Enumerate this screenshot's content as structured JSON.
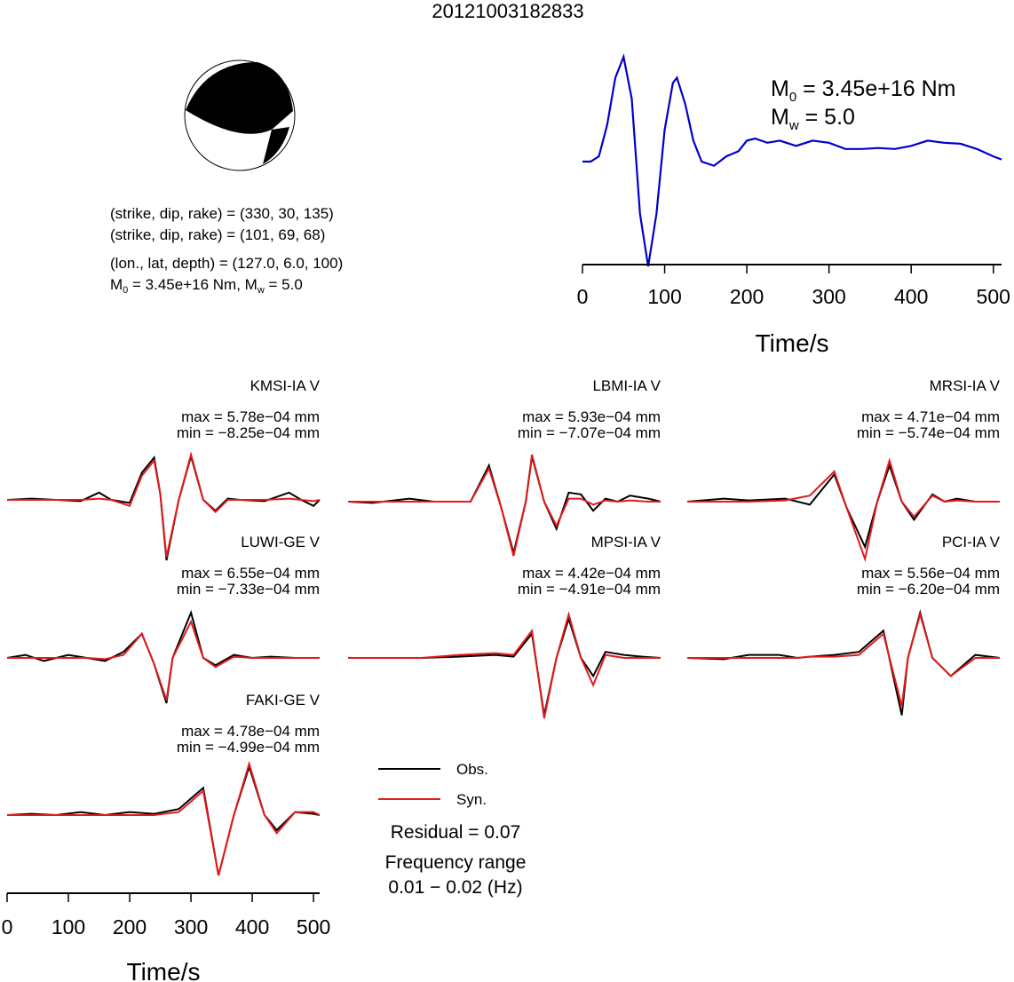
{
  "title": "20121003182833",
  "source_info": {
    "np1": "(strike, dip, rake) = (330, 30, 135)",
    "np2": "(strike, dip, rake) = (101, 69, 68)",
    "location": "(lon., lat, depth) = (127.0, 6.0, 100)",
    "moment_prefix": "M",
    "moment_sub": "0",
    "moment_value": " = 3.45e+16 Nm, M",
    "mw_sub": "w",
    "mw_value": " = 5.0"
  },
  "stf_panel": {
    "m0_prefix": "M",
    "m0_sub": "0",
    "m0_value": " = 3.45e+16 Nm",
    "mw_prefix": "M",
    "mw_sub": "w",
    "mw_value": " = 5.0",
    "xlabel": "Time/s",
    "xticks": [
      "0",
      "100",
      "200",
      "300",
      "400",
      "500"
    ]
  },
  "waveform_panel": {
    "xlabel": "Time/s",
    "xticks": [
      "0",
      "100",
      "200",
      "300",
      "400",
      "500"
    ]
  },
  "legend": {
    "obs": "Obs.",
    "syn": "Syn.",
    "obs_color": "#000000",
    "syn_color": "#e31a1c"
  },
  "residual": "Residual = 0.07",
  "frequency_label": "Frequency range",
  "frequency_value": "0.01 − 0.02 (Hz)",
  "colors": {
    "stf": "#0000cc",
    "obs": "#000000",
    "syn": "#e31a1c"
  },
  "chart_data": [
    {
      "type": "line",
      "name": "source-time-function",
      "x_range": [
        0,
        510
      ],
      "ylim": [
        -1.0,
        1.0
      ],
      "series": [
        {
          "x": [
            0,
            10,
            20,
            30,
            40,
            50,
            60,
            70,
            80,
            90,
            100,
            110,
            115,
            125,
            135,
            145,
            160,
            175,
            190,
            200,
            210,
            225,
            240,
            260,
            280,
            300,
            320,
            340,
            360,
            380,
            400,
            420,
            440,
            460,
            480,
            500,
            510
          ],
          "values": [
            0.0,
            0.0,
            0.05,
            0.35,
            0.8,
            1.0,
            0.6,
            -0.5,
            -1.0,
            -0.5,
            0.3,
            0.75,
            0.8,
            0.55,
            0.2,
            0.0,
            -0.04,
            0.05,
            0.1,
            0.2,
            0.22,
            0.18,
            0.2,
            0.15,
            0.2,
            0.18,
            0.12,
            0.12,
            0.13,
            0.12,
            0.15,
            0.2,
            0.18,
            0.17,
            0.12,
            0.05,
            0.02
          ]
        }
      ]
    },
    {
      "type": "line",
      "station": "KMSI-IA V",
      "max": "max = 5.78e−04 mm",
      "min": "min = −8.25e−04 mm",
      "x_range": [
        0,
        510
      ],
      "ylim": [
        -1.0,
        1.0
      ],
      "series": [
        {
          "name": "Obs.",
          "x": [
            0,
            40,
            80,
            120,
            150,
            170,
            200,
            220,
            240,
            250,
            260,
            280,
            300,
            320,
            340,
            360,
            380,
            420,
            460,
            480,
            500,
            510
          ],
          "values": [
            0,
            0.02,
            0,
            -0.02,
            0.12,
            0.0,
            -0.05,
            0.45,
            0.7,
            0.1,
            -1.0,
            0.0,
            0.72,
            0.0,
            -0.18,
            0.02,
            0,
            -0.02,
            0.12,
            0.0,
            -0.1,
            0
          ]
        },
        {
          "name": "Syn.",
          "x": [
            0,
            40,
            80,
            120,
            150,
            170,
            200,
            220,
            240,
            250,
            260,
            280,
            300,
            320,
            340,
            360,
            380,
            420,
            460,
            480,
            500,
            510
          ],
          "values": [
            0,
            0,
            0,
            0,
            0.02,
            0.0,
            -0.1,
            0.4,
            0.65,
            0.1,
            -0.95,
            0.0,
            0.75,
            0.0,
            -0.2,
            0.0,
            0,
            0,
            0.02,
            0.0,
            -0.02,
            0
          ]
        }
      ]
    },
    {
      "type": "line",
      "station": "LBMI-IA V",
      "max": "max = 5.93e−04 mm",
      "min": "min = −7.07e−04 mm",
      "x_range": [
        0,
        510
      ],
      "ylim": [
        -1.0,
        1.0
      ],
      "series": [
        {
          "name": "Obs.",
          "x": [
            0,
            40,
            100,
            140,
            200,
            230,
            250,
            270,
            290,
            300,
            320,
            340,
            360,
            380,
            400,
            420,
            440,
            460,
            490,
            510
          ],
          "values": [
            0,
            -0.02,
            0.05,
            0.0,
            0.0,
            0.6,
            -0.1,
            -0.85,
            0.0,
            0.75,
            0.0,
            -0.45,
            0.15,
            0.12,
            -0.15,
            0.05,
            0.0,
            0.1,
            0.05,
            0
          ]
        },
        {
          "name": "Syn.",
          "x": [
            0,
            40,
            100,
            140,
            200,
            230,
            250,
            270,
            290,
            300,
            320,
            340,
            360,
            380,
            400,
            420,
            440,
            460,
            490,
            510
          ],
          "values": [
            0,
            0,
            0,
            0.0,
            0.0,
            0.55,
            -0.1,
            -0.9,
            0.0,
            0.78,
            0.0,
            -0.4,
            0.05,
            0.05,
            -0.05,
            0.02,
            0.0,
            0.02,
            0.0,
            0
          ]
        }
      ]
    },
    {
      "type": "line",
      "station": "MRSI-IA V",
      "max": "max = 4.71e−04 mm",
      "min": "min = −5.74e−04 mm",
      "x_range": [
        0,
        510
      ],
      "ylim": [
        -1.0,
        1.0
      ],
      "series": [
        {
          "name": "Obs.",
          "x": [
            0,
            60,
            100,
            160,
            200,
            240,
            260,
            290,
            310,
            330,
            350,
            370,
            400,
            420,
            440,
            470,
            510
          ],
          "values": [
            0,
            0.05,
            0.02,
            0.05,
            -0.05,
            0.45,
            -0.1,
            -0.75,
            0.0,
            0.6,
            0.0,
            -0.3,
            0.12,
            0.0,
            0.05,
            0.0,
            0
          ]
        },
        {
          "name": "Syn.",
          "x": [
            0,
            60,
            100,
            160,
            200,
            240,
            260,
            290,
            310,
            330,
            350,
            370,
            400,
            420,
            440,
            470,
            510
          ],
          "values": [
            0,
            0,
            0,
            0.02,
            0.1,
            0.5,
            -0.1,
            -0.95,
            0.0,
            0.68,
            0.0,
            -0.25,
            0.1,
            0.0,
            0.02,
            0.0,
            0
          ]
        }
      ]
    },
    {
      "type": "line",
      "station": "LUWI-GE V",
      "max": "max = 6.55e−04 mm",
      "min": "min = −7.33e−04 mm",
      "x_range": [
        0,
        510
      ],
      "ylim": [
        -1.0,
        1.0
      ],
      "series": [
        {
          "name": "Obs.",
          "x": [
            0,
            30,
            60,
            100,
            130,
            160,
            190,
            220,
            240,
            260,
            270,
            300,
            320,
            340,
            370,
            400,
            430,
            470,
            510
          ],
          "values": [
            0,
            0.05,
            -0.05,
            0.05,
            0.0,
            -0.05,
            0.1,
            0.4,
            -0.1,
            -0.75,
            0.0,
            0.75,
            0.0,
            -0.12,
            0.05,
            0.0,
            0.02,
            0.0,
            0
          ]
        },
        {
          "name": "Syn.",
          "x": [
            0,
            30,
            60,
            100,
            130,
            160,
            190,
            220,
            240,
            260,
            270,
            300,
            320,
            340,
            370,
            400,
            430,
            470,
            510
          ],
          "values": [
            0,
            0,
            0,
            0,
            0.0,
            -0.02,
            0.05,
            0.4,
            -0.1,
            -0.7,
            0.0,
            0.6,
            0.0,
            -0.15,
            0.02,
            0.0,
            0.0,
            0.0,
            0
          ]
        }
      ]
    },
    {
      "type": "line",
      "station": "MPSI-IA V",
      "max": "max = 4.42e−04 mm",
      "min": "min = −4.91e−04 mm",
      "x_range": [
        0,
        510
      ],
      "ylim": [
        -1.0,
        1.0
      ],
      "series": [
        {
          "name": "Obs.",
          "x": [
            0,
            60,
            120,
            180,
            240,
            270,
            300,
            320,
            340,
            360,
            380,
            400,
            420,
            450,
            480,
            510
          ],
          "values": [
            0,
            0.0,
            0.0,
            0.02,
            0.05,
            0.02,
            0.4,
            -0.95,
            0.0,
            0.65,
            0.0,
            -0.3,
            0.1,
            0.05,
            0.02,
            0
          ]
        },
        {
          "name": "Syn.",
          "x": [
            0,
            60,
            120,
            180,
            240,
            270,
            300,
            320,
            340,
            360,
            380,
            400,
            420,
            450,
            480,
            510
          ],
          "values": [
            0,
            0.0,
            0.0,
            0.05,
            0.08,
            0.05,
            0.45,
            -1.0,
            0.0,
            0.72,
            0.0,
            -0.45,
            0.05,
            0.0,
            0.0,
            0
          ]
        }
      ]
    },
    {
      "type": "line",
      "station": "PCI-IA V",
      "max": "max = 5.56e−04 mm",
      "min": "min = −6.20e−04 mm",
      "x_range": [
        0,
        510
      ],
      "ylim": [
        -1.0,
        1.0
      ],
      "series": [
        {
          "name": "Obs.",
          "x": [
            0,
            60,
            100,
            150,
            180,
            200,
            240,
            280,
            320,
            350,
            360,
            380,
            400,
            430,
            470,
            510
          ],
          "values": [
            0,
            -0.02,
            0.05,
            0.05,
            0.0,
            0.02,
            0.05,
            0.1,
            0.45,
            -0.95,
            0.0,
            0.75,
            0.0,
            -0.3,
            0.05,
            0
          ]
        },
        {
          "name": "Syn.",
          "x": [
            0,
            60,
            100,
            150,
            180,
            200,
            240,
            280,
            320,
            350,
            360,
            380,
            400,
            430,
            470,
            510
          ],
          "values": [
            0,
            0,
            0,
            0.0,
            0.0,
            0.02,
            0.02,
            0.05,
            0.4,
            -0.8,
            0.0,
            0.72,
            0.0,
            -0.3,
            0.0,
            0
          ]
        }
      ]
    },
    {
      "type": "line",
      "station": "FAKI-GE V",
      "max": "max = 4.78e−04 mm",
      "min": "min = −4.99e−04 mm",
      "x_range": [
        0,
        510
      ],
      "ylim": [
        -1.0,
        1.0
      ],
      "series": [
        {
          "name": "Obs.",
          "x": [
            0,
            40,
            80,
            120,
            160,
            200,
            240,
            280,
            320,
            345,
            370,
            395,
            420,
            440,
            470,
            500,
            510
          ],
          "values": [
            0,
            0.02,
            0.0,
            0.05,
            0.0,
            0.05,
            0.02,
            0.1,
            0.45,
            -1.0,
            0.0,
            0.8,
            0.0,
            -0.25,
            0.05,
            0.02,
            0
          ]
        },
        {
          "name": "Syn.",
          "x": [
            0,
            40,
            80,
            120,
            160,
            200,
            240,
            280,
            320,
            345,
            370,
            395,
            420,
            440,
            470,
            500,
            510
          ],
          "values": [
            0,
            0,
            0,
            0,
            0.0,
            0.0,
            0.0,
            0.05,
            0.4,
            -1.0,
            0.0,
            0.85,
            0.0,
            -0.3,
            0.05,
            0.05,
            0
          ]
        }
      ]
    }
  ]
}
